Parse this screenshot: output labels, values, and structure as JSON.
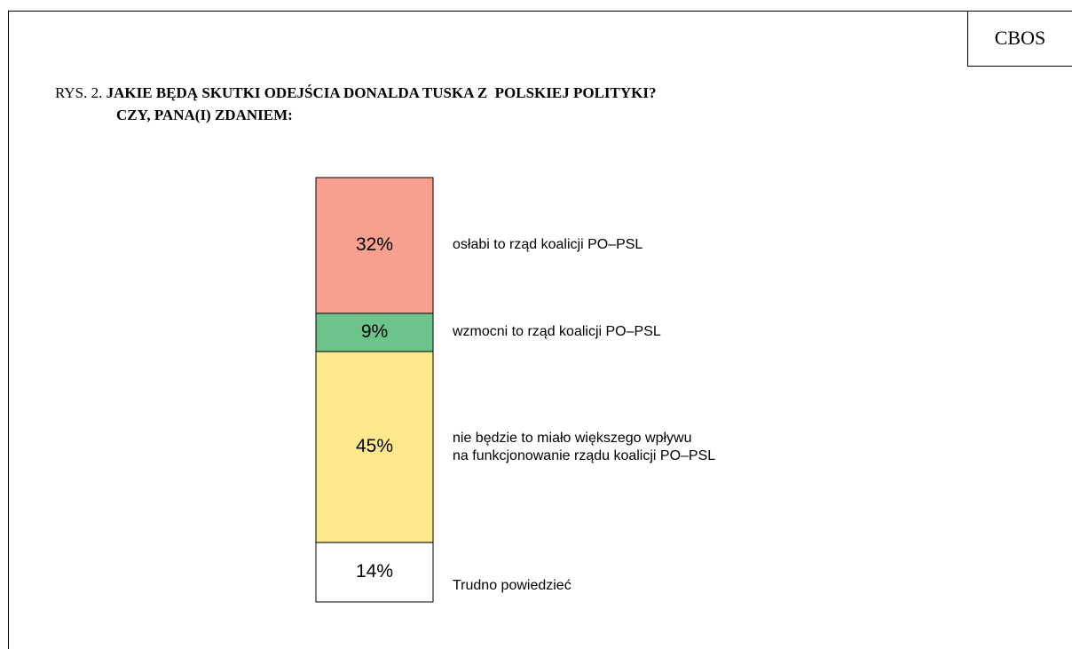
{
  "chart_data": {
    "type": "stacked_bar",
    "source": "CBOS",
    "figure_label": "RYS. 2.",
    "title": [
      "JAKIE BĘDĄ SKUTKI ODEJŚCIA DONALDA TUSKA Z  POLSKIEJ POLITYKI?",
      "CZY, PANA(I) ZDANIEM:"
    ],
    "categories": [
      "osłabi to rząd koalicji PO–PSL",
      "wzmocni to rząd koalicji PO–PSL",
      "nie będzie to miało większego wpływu\nna funkcjonowanie rządu koalicji PO–PSL",
      "Trudno powiedzieć"
    ],
    "values": [
      32,
      9,
      45,
      14
    ],
    "value_labels": [
      "32%",
      "9%",
      "45%",
      "14%"
    ],
    "colors": [
      "#f9a090",
      "#6cc48c",
      "#fde98c",
      "#ffffff"
    ]
  }
}
